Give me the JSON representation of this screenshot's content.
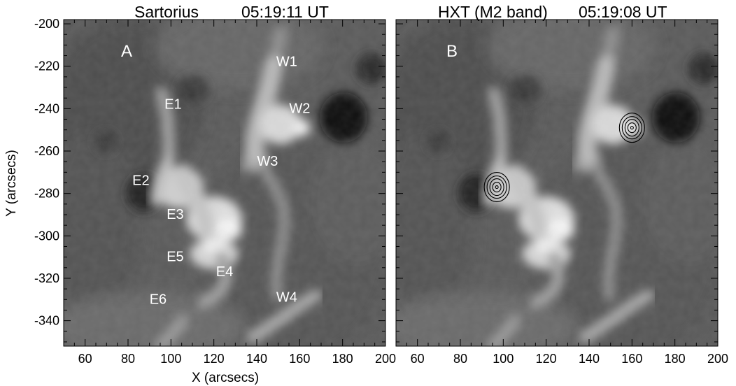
{
  "figure": {
    "panel_a": {
      "title_instrument": "Sartorius",
      "title_time": "05:19:11 UT",
      "panel_label": "A",
      "feature_labels": [
        {
          "text": "W1",
          "x": 154,
          "y": -220
        },
        {
          "text": "W2",
          "x": 160,
          "y": -242
        },
        {
          "text": "E1",
          "x": 101,
          "y": -240
        },
        {
          "text": "W3",
          "x": 145,
          "y": -267
        },
        {
          "text": "E2",
          "x": 86,
          "y": -276
        },
        {
          "text": "E3",
          "x": 102,
          "y": -292
        },
        {
          "text": "E5",
          "x": 102,
          "y": -312
        },
        {
          "text": "E4",
          "x": 125,
          "y": -319
        },
        {
          "text": "E6",
          "x": 94,
          "y": -332
        },
        {
          "text": "W4",
          "x": 154,
          "y": -331
        }
      ]
    },
    "panel_b": {
      "title_instrument": "HXT (M2 band)",
      "title_time": "05:19:08 UT",
      "panel_label": "B",
      "contour_sources": [
        {
          "x": 97,
          "y": -277
        },
        {
          "x": 160,
          "y": -249
        }
      ]
    },
    "x_axis": {
      "label": "X (arcsecs)",
      "ticks": [
        60,
        80,
        100,
        120,
        140,
        160,
        180,
        200
      ],
      "range": [
        50,
        200
      ]
    },
    "y_axis": {
      "label": "Y (arcsecs)",
      "ticks": [
        -200,
        -220,
        -240,
        -260,
        -280,
        -300,
        -320,
        -340
      ],
      "range": [
        -352,
        -198
      ]
    }
  }
}
